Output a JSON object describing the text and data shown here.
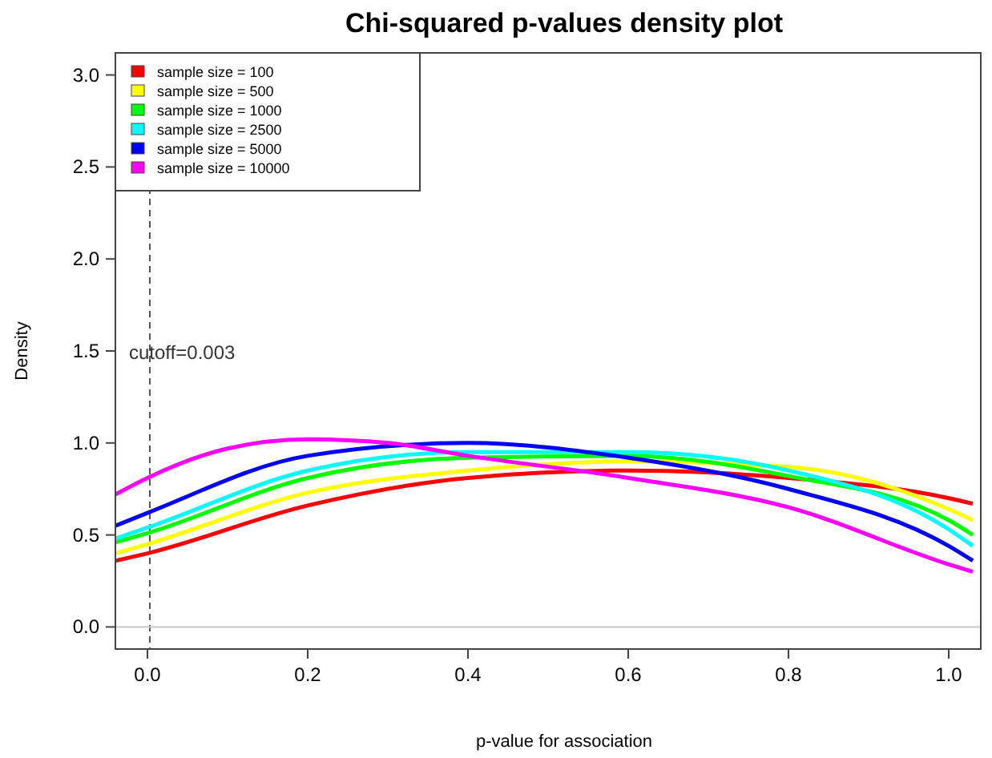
{
  "chart_data": {
    "type": "line",
    "title": "Chi-squared p-values density plot",
    "xlabel": "p-value for association",
    "ylabel": "Density",
    "x": [
      -0.04,
      0,
      0.2,
      0.4,
      0.6,
      0.8,
      1.0,
      1.03
    ],
    "series": [
      {
        "name": "sample size = 100",
        "color": "#ff0000",
        "values": [
          0.36,
          0.4,
          0.66,
          0.81,
          0.85,
          0.81,
          0.7,
          0.67
        ]
      },
      {
        "name": "sample size = 500",
        "color": "#ffff00",
        "values": [
          0.4,
          0.45,
          0.73,
          0.85,
          0.9,
          0.87,
          0.64,
          0.58
        ]
      },
      {
        "name": "sample size = 1000",
        "color": "#00ff00",
        "values": [
          0.46,
          0.51,
          0.81,
          0.92,
          0.93,
          0.82,
          0.58,
          0.5
        ]
      },
      {
        "name": "sample size = 2500",
        "color": "#00ffff",
        "values": [
          0.48,
          0.54,
          0.85,
          0.95,
          0.95,
          0.85,
          0.53,
          0.44
        ]
      },
      {
        "name": "sample size = 5000",
        "color": "#0000ff",
        "values": [
          0.55,
          0.62,
          0.93,
          1.0,
          0.92,
          0.75,
          0.44,
          0.36
        ]
      },
      {
        "name": "sample size = 10000",
        "color": "#ff00ff",
        "x": [
          -0.04,
          0,
          0.1,
          0.2,
          0.3,
          0.4,
          0.6,
          0.8,
          1.0,
          1.03
        ],
        "values": [
          0.72,
          0.81,
          0.97,
          1.02,
          1.0,
          0.93,
          0.81,
          0.65,
          0.34,
          0.3
        ]
      }
    ],
    "xlim": [
      -0.04,
      1.04
    ],
    "ylim": [
      -0.12,
      3.12
    ],
    "xticks": [
      {
        "value": 0,
        "label": "0.0"
      },
      {
        "value": 0.2,
        "label": "0.2"
      },
      {
        "value": 0.4,
        "label": "0.4"
      },
      {
        "value": 0.6,
        "label": "0.6"
      },
      {
        "value": 0.8,
        "label": "0.8"
      },
      {
        "value": 1,
        "label": "1.0"
      }
    ],
    "yticks": [
      {
        "value": 0,
        "label": "0.0"
      },
      {
        "value": 0.5,
        "label": "0.5"
      },
      {
        "value": 1,
        "label": "1.0"
      },
      {
        "value": 1.5,
        "label": "1.5"
      },
      {
        "value": 2,
        "label": "2.0"
      },
      {
        "value": 2.5,
        "label": "2.5"
      },
      {
        "value": 3,
        "label": "3.0"
      }
    ],
    "ref_lines": [
      {
        "axis": "x",
        "value": 0.003,
        "label": "cutoff=0.003",
        "color": "#555555",
        "line_style": "dashed"
      },
      {
        "axis": "y",
        "value": 0,
        "color": "#c8c8c8",
        "line_style": "solid"
      }
    ],
    "legend": "top left",
    "grid": false,
    "marker": "none",
    "line_style": "solid"
  }
}
